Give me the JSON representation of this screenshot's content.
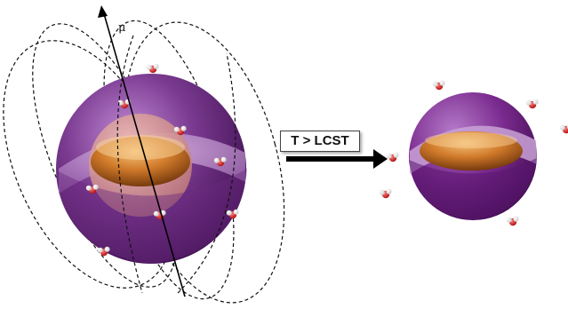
{
  "condition_label": "T > LCST",
  "dipole_symbol": "μ",
  "colors": {
    "shell_purple": "#7a3a90",
    "shell_purple_dark": "#3e1050",
    "shell_purple_light": "#b07ac4",
    "core_orange": "#d07a2a",
    "core_orange_dark": "#6a2e08",
    "core_orange_light": "#f4b36a",
    "water_oxygen": "#d11a1a",
    "water_hydrogen": "#ffffff",
    "field_line": "#111111",
    "arrow": "#000000"
  },
  "water_molecule_icon": "water-molecule-icon",
  "magnetic_field_icon": "field-line-loop-icon"
}
